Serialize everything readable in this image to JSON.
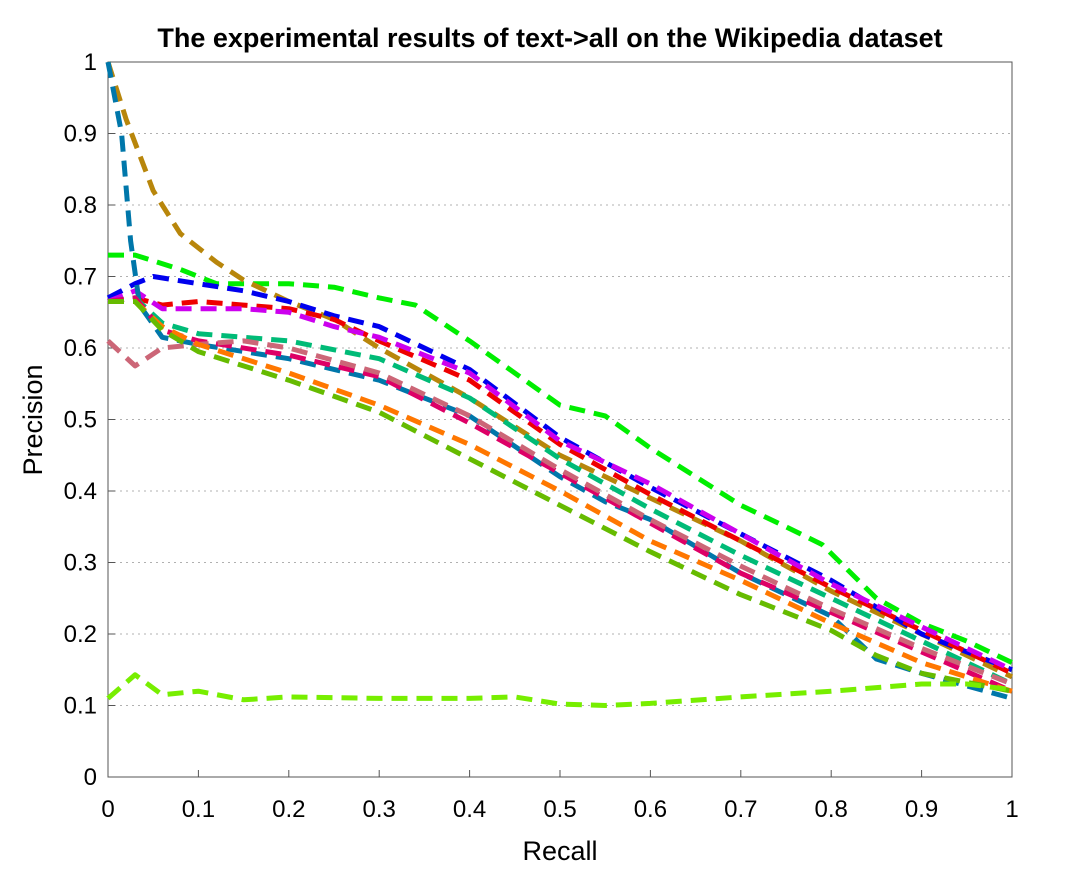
{
  "chart_data": {
    "type": "line",
    "title": "The experimental results of text->all on the Wikipedia dataset",
    "xlabel": "Recall",
    "ylabel": "Precision",
    "xlim": [
      0,
      1
    ],
    "ylim": [
      0,
      1
    ],
    "xticks": [
      "0",
      "0.1",
      "0.2",
      "0.3",
      "0.4",
      "0.5",
      "0.6",
      "0.7",
      "0.8",
      "0.9",
      "1"
    ],
    "yticks": [
      "0",
      "0.1",
      "0.2",
      "0.3",
      "0.4",
      "0.5",
      "0.6",
      "0.7",
      "0.8",
      "0.9",
      "1"
    ],
    "grid": "y-dotted",
    "legend": "none",
    "series": [
      {
        "color": "#00ee00",
        "points": [
          [
            0,
            0.73
          ],
          [
            0.03,
            0.73
          ],
          [
            0.08,
            0.71
          ],
          [
            0.12,
            0.69
          ],
          [
            0.2,
            0.69
          ],
          [
            0.25,
            0.685
          ],
          [
            0.3,
            0.67
          ],
          [
            0.34,
            0.66
          ],
          [
            0.4,
            0.61
          ],
          [
            0.5,
            0.52
          ],
          [
            0.55,
            0.505
          ],
          [
            0.6,
            0.46
          ],
          [
            0.7,
            0.38
          ],
          [
            0.75,
            0.35
          ],
          [
            0.79,
            0.325
          ],
          [
            0.85,
            0.25
          ],
          [
            0.9,
            0.215
          ],
          [
            0.95,
            0.19
          ],
          [
            1,
            0.16
          ]
        ]
      },
      {
        "color": "#b8860b",
        "points": [
          [
            0,
            1.0
          ],
          [
            0.02,
            0.92
          ],
          [
            0.05,
            0.82
          ],
          [
            0.08,
            0.76
          ],
          [
            0.12,
            0.72
          ],
          [
            0.15,
            0.695
          ],
          [
            0.2,
            0.665
          ],
          [
            0.25,
            0.64
          ],
          [
            0.3,
            0.6
          ],
          [
            0.4,
            0.53
          ],
          [
            0.5,
            0.45
          ],
          [
            0.6,
            0.39
          ],
          [
            0.7,
            0.33
          ],
          [
            0.8,
            0.26
          ],
          [
            0.9,
            0.2
          ],
          [
            1,
            0.14
          ]
        ]
      },
      {
        "color": "#0000ee",
        "points": [
          [
            0,
            0.67
          ],
          [
            0.03,
            0.69
          ],
          [
            0.05,
            0.7
          ],
          [
            0.1,
            0.69
          ],
          [
            0.15,
            0.68
          ],
          [
            0.2,
            0.665
          ],
          [
            0.25,
            0.645
          ],
          [
            0.3,
            0.63
          ],
          [
            0.4,
            0.57
          ],
          [
            0.5,
            0.475
          ],
          [
            0.6,
            0.405
          ],
          [
            0.7,
            0.34
          ],
          [
            0.8,
            0.275
          ],
          [
            0.9,
            0.2
          ],
          [
            1,
            0.15
          ]
        ]
      },
      {
        "color": "#ee0000",
        "points": [
          [
            0,
            0.665
          ],
          [
            0.03,
            0.67
          ],
          [
            0.06,
            0.66
          ],
          [
            0.1,
            0.665
          ],
          [
            0.15,
            0.66
          ],
          [
            0.2,
            0.655
          ],
          [
            0.25,
            0.64
          ],
          [
            0.3,
            0.61
          ],
          [
            0.4,
            0.555
          ],
          [
            0.5,
            0.465
          ],
          [
            0.6,
            0.395
          ],
          [
            0.7,
            0.33
          ],
          [
            0.8,
            0.265
          ],
          [
            0.9,
            0.205
          ],
          [
            1,
            0.145
          ]
        ]
      },
      {
        "color": "#cc00ee",
        "points": [
          [
            0,
            0.665
          ],
          [
            0.03,
            0.68
          ],
          [
            0.06,
            0.655
          ],
          [
            0.1,
            0.655
          ],
          [
            0.15,
            0.655
          ],
          [
            0.2,
            0.65
          ],
          [
            0.25,
            0.63
          ],
          [
            0.3,
            0.615
          ],
          [
            0.4,
            0.565
          ],
          [
            0.5,
            0.47
          ],
          [
            0.6,
            0.41
          ],
          [
            0.7,
            0.34
          ],
          [
            0.8,
            0.27
          ],
          [
            0.9,
            0.21
          ],
          [
            1,
            0.15
          ]
        ]
      },
      {
        "color": "#0077aa",
        "points": [
          [
            0,
            1.0
          ],
          [
            0.015,
            0.9
          ],
          [
            0.025,
            0.75
          ],
          [
            0.035,
            0.66
          ],
          [
            0.06,
            0.615
          ],
          [
            0.1,
            0.605
          ],
          [
            0.2,
            0.585
          ],
          [
            0.3,
            0.555
          ],
          [
            0.4,
            0.505
          ],
          [
            0.5,
            0.42
          ],
          [
            0.55,
            0.385
          ],
          [
            0.6,
            0.36
          ],
          [
            0.7,
            0.285
          ],
          [
            0.8,
            0.225
          ],
          [
            0.85,
            0.165
          ],
          [
            0.9,
            0.145
          ],
          [
            1,
            0.11
          ]
        ]
      },
      {
        "color": "#00bb77",
        "points": [
          [
            0,
            0.665
          ],
          [
            0.03,
            0.67
          ],
          [
            0.06,
            0.635
          ],
          [
            0.1,
            0.62
          ],
          [
            0.2,
            0.61
          ],
          [
            0.3,
            0.585
          ],
          [
            0.4,
            0.53
          ],
          [
            0.5,
            0.445
          ],
          [
            0.6,
            0.375
          ],
          [
            0.7,
            0.31
          ],
          [
            0.8,
            0.25
          ],
          [
            0.9,
            0.19
          ],
          [
            1,
            0.13
          ]
        ]
      },
      {
        "color": "#dd0066",
        "points": [
          [
            0,
            0.665
          ],
          [
            0.03,
            0.67
          ],
          [
            0.06,
            0.625
          ],
          [
            0.1,
            0.61
          ],
          [
            0.2,
            0.59
          ],
          [
            0.3,
            0.56
          ],
          [
            0.4,
            0.495
          ],
          [
            0.5,
            0.425
          ],
          [
            0.6,
            0.355
          ],
          [
            0.7,
            0.285
          ],
          [
            0.8,
            0.23
          ],
          [
            0.9,
            0.175
          ],
          [
            1,
            0.12
          ]
        ]
      },
      {
        "color": "#cc6677",
        "points": [
          [
            0,
            0.61
          ],
          [
            0.03,
            0.575
          ],
          [
            0.06,
            0.6
          ],
          [
            0.1,
            0.605
          ],
          [
            0.15,
            0.61
          ],
          [
            0.2,
            0.6
          ],
          [
            0.3,
            0.565
          ],
          [
            0.4,
            0.505
          ],
          [
            0.5,
            0.43
          ],
          [
            0.6,
            0.36
          ],
          [
            0.7,
            0.295
          ],
          [
            0.8,
            0.235
          ],
          [
            0.9,
            0.18
          ],
          [
            1,
            0.13
          ]
        ]
      },
      {
        "color": "#ff7700",
        "points": [
          [
            0,
            0.665
          ],
          [
            0.03,
            0.665
          ],
          [
            0.06,
            0.63
          ],
          [
            0.1,
            0.605
          ],
          [
            0.2,
            0.565
          ],
          [
            0.3,
            0.52
          ],
          [
            0.4,
            0.465
          ],
          [
            0.5,
            0.4
          ],
          [
            0.6,
            0.33
          ],
          [
            0.7,
            0.275
          ],
          [
            0.8,
            0.215
          ],
          [
            0.9,
            0.16
          ],
          [
            1,
            0.12
          ]
        ]
      },
      {
        "color": "#66bb00",
        "points": [
          [
            0,
            0.665
          ],
          [
            0.03,
            0.665
          ],
          [
            0.06,
            0.625
          ],
          [
            0.1,
            0.595
          ],
          [
            0.2,
            0.555
          ],
          [
            0.3,
            0.51
          ],
          [
            0.4,
            0.445
          ],
          [
            0.5,
            0.38
          ],
          [
            0.6,
            0.315
          ],
          [
            0.7,
            0.255
          ],
          [
            0.8,
            0.205
          ],
          [
            0.85,
            0.17
          ],
          [
            0.9,
            0.145
          ],
          [
            1,
            0.12
          ]
        ]
      },
      {
        "color": "#77ee00",
        "points": [
          [
            0,
            0.11
          ],
          [
            0.03,
            0.143
          ],
          [
            0.06,
            0.115
          ],
          [
            0.1,
            0.12
          ],
          [
            0.15,
            0.108
          ],
          [
            0.2,
            0.112
          ],
          [
            0.3,
            0.11
          ],
          [
            0.4,
            0.11
          ],
          [
            0.45,
            0.112
          ],
          [
            0.5,
            0.102
          ],
          [
            0.55,
            0.1
          ],
          [
            0.6,
            0.103
          ],
          [
            0.7,
            0.112
          ],
          [
            0.8,
            0.12
          ],
          [
            0.9,
            0.13
          ],
          [
            0.95,
            0.13
          ],
          [
            1,
            0.122
          ]
        ]
      }
    ]
  }
}
